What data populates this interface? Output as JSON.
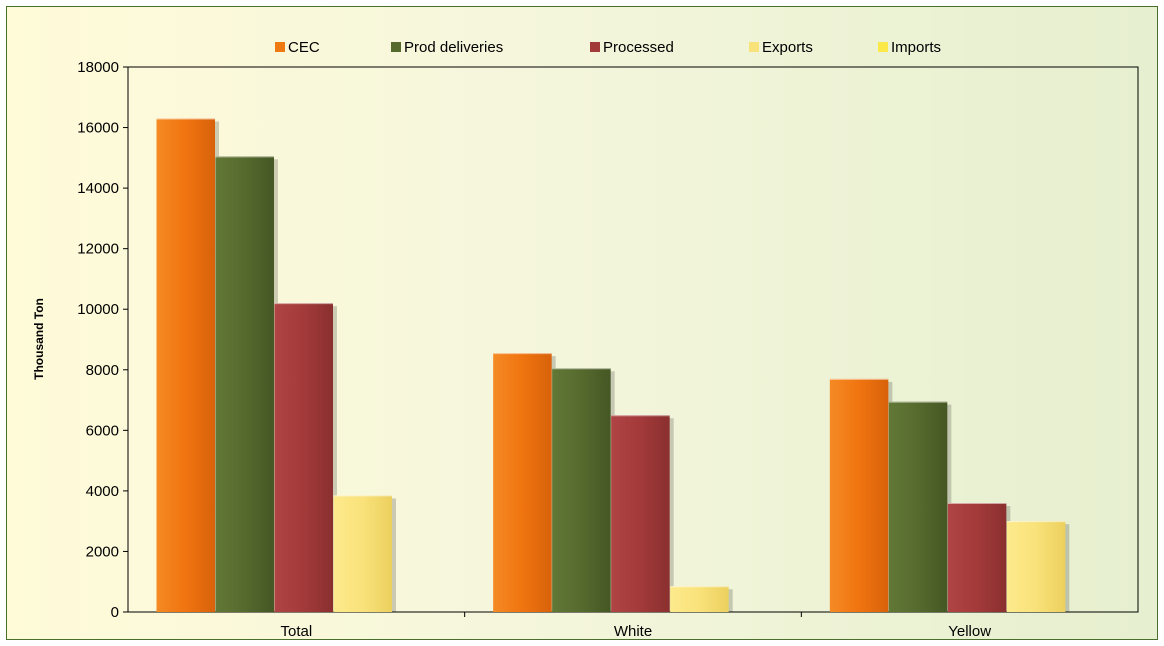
{
  "chart_data": {
    "type": "bar",
    "title": "",
    "xlabel": "",
    "ylabel": "Thousand Ton",
    "ylim": [
      0,
      18000
    ],
    "yticks": [
      0,
      2000,
      4000,
      6000,
      8000,
      10000,
      12000,
      14000,
      16000,
      18000
    ],
    "categories": [
      "Total",
      "White",
      "Yellow"
    ],
    "legend_position": "top",
    "grid": false,
    "series": [
      {
        "name": "CEC",
        "color": "#f07a12",
        "values": [
          16300,
          8550,
          7700
        ]
      },
      {
        "name": "Prod deliveries",
        "color": "#566a2e",
        "values": [
          15050,
          8050,
          6950
        ]
      },
      {
        "name": "Processed",
        "color": "#a33a3a",
        "values": [
          10200,
          6500,
          3600
        ]
      },
      {
        "name": "Exports",
        "color": "#f9e27a",
        "values": [
          3850,
          850,
          3000
        ]
      },
      {
        "name": "Imports",
        "color": "#fbe94a",
        "values": [
          null,
          null,
          null
        ]
      }
    ]
  }
}
